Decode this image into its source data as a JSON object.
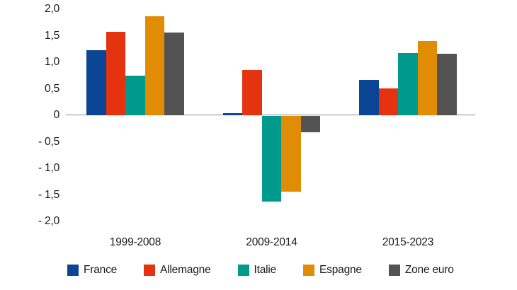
{
  "chart_data": {
    "type": "bar",
    "title": "",
    "categories": [
      "1999-2008",
      "2009-2014",
      "2015-2023"
    ],
    "series": [
      {
        "name": "France",
        "color": "#0a4596",
        "values": [
          1.22,
          0.03,
          0.66
        ]
      },
      {
        "name": "Allemagne",
        "color": "#e5330f",
        "values": [
          1.57,
          0.85,
          0.5
        ]
      },
      {
        "name": "Italie",
        "color": "#009a8d",
        "values": [
          0.74,
          -1.62,
          1.17
        ]
      },
      {
        "name": "Espagne",
        "color": "#e08c05",
        "values": [
          1.86,
          -1.43,
          1.4
        ]
      },
      {
        "name": "Zone euro",
        "color": "#535353",
        "values": [
          1.55,
          -0.31,
          1.16
        ]
      }
    ],
    "y_axis": {
      "ticks": [
        "2,0",
        "1,5",
        "1,0",
        "0,5",
        "0",
        "- 0,5",
        "- 1,0",
        "- 1,5",
        "- 2,0"
      ],
      "tick_values": [
        2.0,
        1.5,
        1.0,
        0.5,
        0,
        -0.5,
        -1.0,
        -1.5,
        -2.0
      ],
      "min": -2.0,
      "max": 2.0
    },
    "xlabel": "",
    "ylabel": "",
    "grid": false,
    "legend_position": "bottom",
    "axis_line_color": "#8c8c8c",
    "text_color": "#1a1a1a"
  }
}
